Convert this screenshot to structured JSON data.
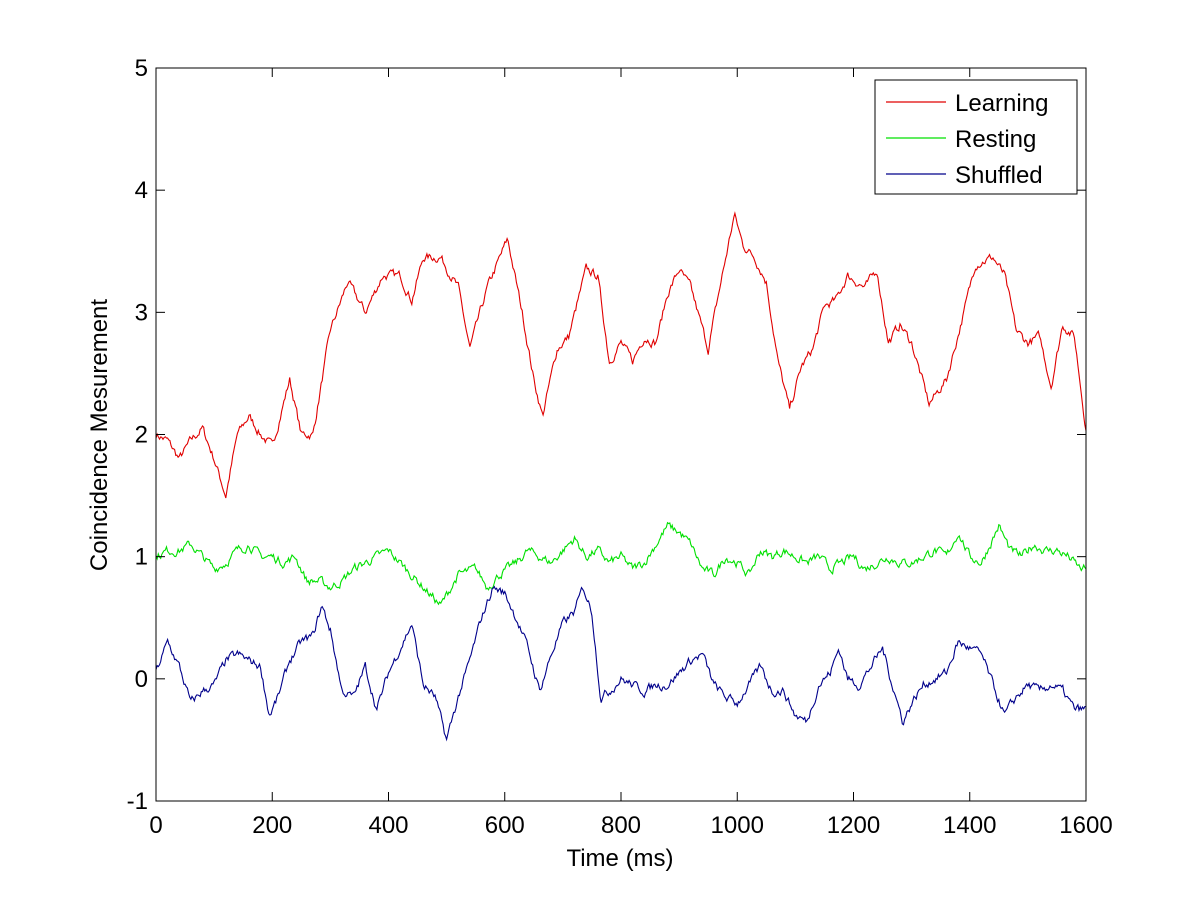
{
  "chart_data": {
    "type": "line",
    "title": "",
    "xlabel": "Time (ms)",
    "ylabel": "Coincidence Mesurement",
    "xlim": [
      0,
      1600
    ],
    "ylim": [
      -1,
      5
    ],
    "xticks": [
      0,
      200,
      400,
      600,
      800,
      1000,
      1200,
      1400,
      1600
    ],
    "yticks": [
      -1,
      0,
      1,
      2,
      3,
      4,
      5
    ],
    "grid": false,
    "legend_position": "top-right",
    "series": [
      {
        "name": "Learning",
        "color": "#e00000",
        "anchors": [
          [
            0,
            2.0
          ],
          [
            20,
            1.95
          ],
          [
            40,
            1.8
          ],
          [
            60,
            1.95
          ],
          [
            80,
            2.05
          ],
          [
            100,
            1.8
          ],
          [
            120,
            1.5
          ],
          [
            140,
            2.0
          ],
          [
            160,
            2.15
          ],
          [
            180,
            2.0
          ],
          [
            200,
            1.9
          ],
          [
            230,
            2.45
          ],
          [
            250,
            2.0
          ],
          [
            270,
            2.0
          ],
          [
            300,
            2.85
          ],
          [
            330,
            3.25
          ],
          [
            360,
            3.0
          ],
          [
            390,
            3.3
          ],
          [
            420,
            3.3
          ],
          [
            440,
            3.1
          ],
          [
            460,
            3.45
          ],
          [
            490,
            3.45
          ],
          [
            520,
            3.2
          ],
          [
            540,
            2.7
          ],
          [
            570,
            3.2
          ],
          [
            605,
            3.6
          ],
          [
            630,
            3.0
          ],
          [
            650,
            2.45
          ],
          [
            665,
            2.15
          ],
          [
            690,
            2.7
          ],
          [
            710,
            2.8
          ],
          [
            740,
            3.35
          ],
          [
            760,
            3.3
          ],
          [
            780,
            2.6
          ],
          [
            800,
            2.75
          ],
          [
            820,
            2.6
          ],
          [
            840,
            2.8
          ],
          [
            860,
            2.75
          ],
          [
            880,
            3.15
          ],
          [
            900,
            3.35
          ],
          [
            920,
            3.2
          ],
          [
            950,
            2.7
          ],
          [
            970,
            3.2
          ],
          [
            995,
            3.8
          ],
          [
            1010,
            3.55
          ],
          [
            1030,
            3.45
          ],
          [
            1050,
            3.25
          ],
          [
            1070,
            2.6
          ],
          [
            1090,
            2.2
          ],
          [
            1110,
            2.55
          ],
          [
            1130,
            2.7
          ],
          [
            1150,
            3.05
          ],
          [
            1170,
            3.1
          ],
          [
            1190,
            3.3
          ],
          [
            1220,
            3.2
          ],
          [
            1240,
            3.35
          ],
          [
            1260,
            2.75
          ],
          [
            1280,
            2.9
          ],
          [
            1300,
            2.75
          ],
          [
            1330,
            2.25
          ],
          [
            1360,
            2.45
          ],
          [
            1390,
            3.0
          ],
          [
            1410,
            3.4
          ],
          [
            1440,
            3.45
          ],
          [
            1460,
            3.3
          ],
          [
            1480,
            2.85
          ],
          [
            1500,
            2.75
          ],
          [
            1520,
            2.8
          ],
          [
            1540,
            2.4
          ],
          [
            1560,
            2.9
          ],
          [
            1580,
            2.8
          ],
          [
            1600,
            2.05
          ]
        ]
      },
      {
        "name": "Resting",
        "color": "#00e000",
        "anchors": [
          [
            0,
            1.0
          ],
          [
            20,
            1.05
          ],
          [
            40,
            1.05
          ],
          [
            60,
            1.1
          ],
          [
            80,
            1.0
          ],
          [
            100,
            0.9
          ],
          [
            120,
            0.95
          ],
          [
            140,
            1.05
          ],
          [
            160,
            1.1
          ],
          [
            180,
            1.0
          ],
          [
            200,
            1.0
          ],
          [
            220,
            0.95
          ],
          [
            240,
            1.0
          ],
          [
            260,
            0.8
          ],
          [
            280,
            0.8
          ],
          [
            300,
            0.75
          ],
          [
            320,
            0.8
          ],
          [
            340,
            0.9
          ],
          [
            360,
            0.95
          ],
          [
            380,
            1.0
          ],
          [
            400,
            1.05
          ],
          [
            420,
            0.95
          ],
          [
            440,
            0.85
          ],
          [
            460,
            0.75
          ],
          [
            490,
            0.6
          ],
          [
            520,
            0.85
          ],
          [
            550,
            0.9
          ],
          [
            570,
            0.75
          ],
          [
            590,
            0.85
          ],
          [
            620,
            0.95
          ],
          [
            640,
            1.05
          ],
          [
            660,
            1.0
          ],
          [
            680,
            0.95
          ],
          [
            700,
            1.05
          ],
          [
            720,
            1.15
          ],
          [
            740,
            1.0
          ],
          [
            760,
            1.05
          ],
          [
            780,
            0.95
          ],
          [
            800,
            1.0
          ],
          [
            820,
            0.9
          ],
          [
            840,
            0.95
          ],
          [
            860,
            1.1
          ],
          [
            880,
            1.25
          ],
          [
            900,
            1.2
          ],
          [
            920,
            1.1
          ],
          [
            940,
            0.9
          ],
          [
            960,
            0.85
          ],
          [
            980,
            1.0
          ],
          [
            1000,
            0.95
          ],
          [
            1020,
            0.85
          ],
          [
            1040,
            1.05
          ],
          [
            1060,
            1.0
          ],
          [
            1080,
            1.05
          ],
          [
            1100,
            1.0
          ],
          [
            1120,
            0.95
          ],
          [
            1140,
            1.0
          ],
          [
            1160,
            0.9
          ],
          [
            1180,
            0.95
          ],
          [
            1200,
            1.0
          ],
          [
            1220,
            0.9
          ],
          [
            1240,
            0.95
          ],
          [
            1260,
            1.0
          ],
          [
            1280,
            0.95
          ],
          [
            1300,
            0.95
          ],
          [
            1320,
            1.0
          ],
          [
            1340,
            1.05
          ],
          [
            1360,
            1.0
          ],
          [
            1380,
            1.2
          ],
          [
            1400,
            1.0
          ],
          [
            1420,
            0.95
          ],
          [
            1450,
            1.25
          ],
          [
            1470,
            1.05
          ],
          [
            1490,
            1.0
          ],
          [
            1510,
            1.1
          ],
          [
            1530,
            1.05
          ],
          [
            1550,
            1.05
          ],
          [
            1570,
            1.0
          ],
          [
            1590,
            0.9
          ],
          [
            1600,
            0.9
          ]
        ]
      },
      {
        "name": "Shuffled",
        "color": "#00008b",
        "anchors": [
          [
            0,
            0.05
          ],
          [
            20,
            0.3
          ],
          [
            40,
            0.1
          ],
          [
            60,
            -0.2
          ],
          [
            80,
            -0.1
          ],
          [
            100,
            -0.05
          ],
          [
            120,
            0.15
          ],
          [
            140,
            0.2
          ],
          [
            160,
            0.15
          ],
          [
            180,
            0.1
          ],
          [
            195,
            -0.3
          ],
          [
            210,
            -0.15
          ],
          [
            230,
            0.15
          ],
          [
            250,
            0.3
          ],
          [
            270,
            0.35
          ],
          [
            285,
            0.6
          ],
          [
            300,
            0.4
          ],
          [
            320,
            -0.1
          ],
          [
            340,
            -0.15
          ],
          [
            360,
            0.1
          ],
          [
            380,
            -0.25
          ],
          [
            400,
            0.05
          ],
          [
            420,
            0.25
          ],
          [
            440,
            0.45
          ],
          [
            460,
            -0.05
          ],
          [
            480,
            -0.15
          ],
          [
            500,
            -0.5
          ],
          [
            520,
            -0.15
          ],
          [
            540,
            0.15
          ],
          [
            560,
            0.5
          ],
          [
            580,
            0.75
          ],
          [
            600,
            0.7
          ],
          [
            620,
            0.5
          ],
          [
            640,
            0.25
          ],
          [
            660,
            -0.1
          ],
          [
            680,
            0.2
          ],
          [
            700,
            0.45
          ],
          [
            720,
            0.55
          ],
          [
            735,
            0.75
          ],
          [
            750,
            0.55
          ],
          [
            765,
            -0.15
          ],
          [
            780,
            -0.1
          ],
          [
            800,
            0.0
          ],
          [
            820,
            -0.05
          ],
          [
            840,
            -0.1
          ],
          [
            860,
            -0.05
          ],
          [
            880,
            -0.05
          ],
          [
            900,
            0.05
          ],
          [
            920,
            0.15
          ],
          [
            940,
            0.2
          ],
          [
            960,
            -0.05
          ],
          [
            980,
            -0.15
          ],
          [
            1000,
            -0.2
          ],
          [
            1020,
            -0.05
          ],
          [
            1040,
            0.1
          ],
          [
            1060,
            -0.1
          ],
          [
            1080,
            -0.1
          ],
          [
            1100,
            -0.3
          ],
          [
            1120,
            -0.35
          ],
          [
            1140,
            -0.05
          ],
          [
            1160,
            0.05
          ],
          [
            1175,
            0.25
          ],
          [
            1190,
            0.0
          ],
          [
            1210,
            -0.05
          ],
          [
            1230,
            0.1
          ],
          [
            1250,
            0.25
          ],
          [
            1270,
            -0.1
          ],
          [
            1285,
            -0.35
          ],
          [
            1300,
            -0.2
          ],
          [
            1320,
            -0.05
          ],
          [
            1340,
            0.0
          ],
          [
            1360,
            0.05
          ],
          [
            1380,
            0.3
          ],
          [
            1400,
            0.25
          ],
          [
            1420,
            0.2
          ],
          [
            1440,
            -0.05
          ],
          [
            1460,
            -0.3
          ],
          [
            1480,
            -0.15
          ],
          [
            1500,
            -0.05
          ],
          [
            1520,
            -0.1
          ],
          [
            1540,
            -0.05
          ],
          [
            1560,
            -0.1
          ],
          [
            1580,
            -0.25
          ],
          [
            1600,
            -0.25
          ]
        ]
      }
    ]
  }
}
